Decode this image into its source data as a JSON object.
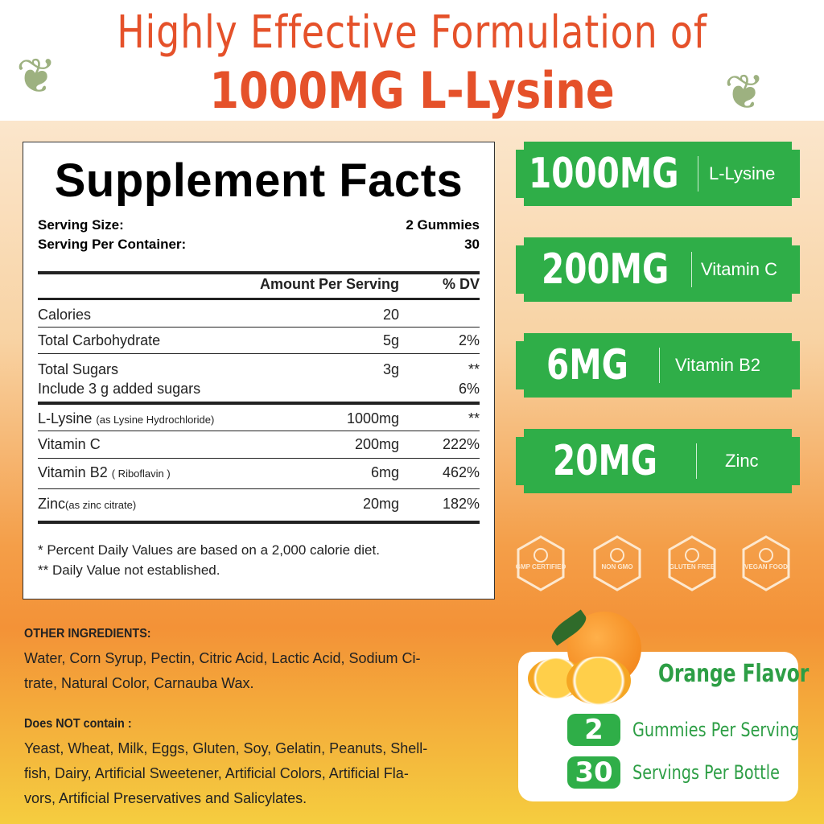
{
  "header": {
    "line1": "Highly Effective Formulation of",
    "line2": "1000MG L-Lysine"
  },
  "facts": {
    "title": "Supplement Facts",
    "serving_size_label": "Serving Size:",
    "serving_size": "2 Gummies",
    "per_container_label": "Serving Per Container:",
    "per_container": "30",
    "col_amount": "Amount Per Serving",
    "col_dv": "% DV",
    "rows": [
      {
        "name": "Calories",
        "amount": "20",
        "dv": ""
      },
      {
        "name": "Total Carbohydrate",
        "amount": "5g",
        "dv": "2%"
      },
      {
        "name": "Total Sugars",
        "amount": "3g",
        "dv": "**"
      },
      {
        "name": "Include 3 g added sugars",
        "amount": "",
        "dv": "6%"
      },
      {
        "name": "L-Lysine",
        "note": "(as Lysine Hydrochloride)",
        "amount": "1000mg",
        "dv": "**"
      },
      {
        "name": "Vitamin C",
        "amount": "200mg",
        "dv": "222%"
      },
      {
        "name": "Vitamin B2",
        "note": "( Riboflavin )",
        "amount": "6mg",
        "dv": "462%"
      },
      {
        "name": "Zinc",
        "note": "(as zinc citrate)",
        "amount": "20mg",
        "dv": "182%"
      }
    ],
    "footnote1": "* Percent Daily Values are based on a 2,000 calorie diet.",
    "footnote2": "** Daily Value not established."
  },
  "badges": [
    {
      "amount": "1000MG",
      "label": "L-Lysine"
    },
    {
      "amount": "200MG",
      "label": "Vitamin C"
    },
    {
      "amount": "6MG",
      "label": "Vitamin B2"
    },
    {
      "amount": "20MG",
      "label": "Zinc"
    }
  ],
  "certifications": [
    {
      "icon": "gmp-ribbon-icon",
      "label": "GMP CERTIFIED"
    },
    {
      "icon": "non-gmo-dna-icon",
      "label": "NON GMO"
    },
    {
      "icon": "gluten-free-wheat-icon",
      "label": "GLUTEN FREE"
    },
    {
      "icon": "vegan-leaf-icon",
      "label": "VEGAN FOOD"
    }
  ],
  "ingredients": {
    "other_title": "OTHER INGREDIENTS:",
    "other_lines": [
      "Water, Corn Syrup, Pectin, Citric Acid, Lactic Acid, Sodium Ci-",
      "trate, Natural Color, Carnauba Wax."
    ],
    "not_title": "Does NOT contain :",
    "not_lines": [
      "Yeast, Wheat, Milk, Eggs, Gluten, Soy, Gelatin, Peanuts, Shell-",
      "fish, Dairy, Artificial Sweetener, Artificial Colors, Artificial Fla-",
      "vors, Artificial Preservatives and Salicylates."
    ]
  },
  "flavor": {
    "title": "Orange Flavor",
    "items": [
      {
        "num": "2",
        "label": "Gummies Per Serving"
      },
      {
        "num": "30",
        "label": "Servings Per Bottle"
      }
    ]
  },
  "colors": {
    "title": "#e5512a",
    "green": "#2fae48",
    "orange": "#f39237"
  }
}
